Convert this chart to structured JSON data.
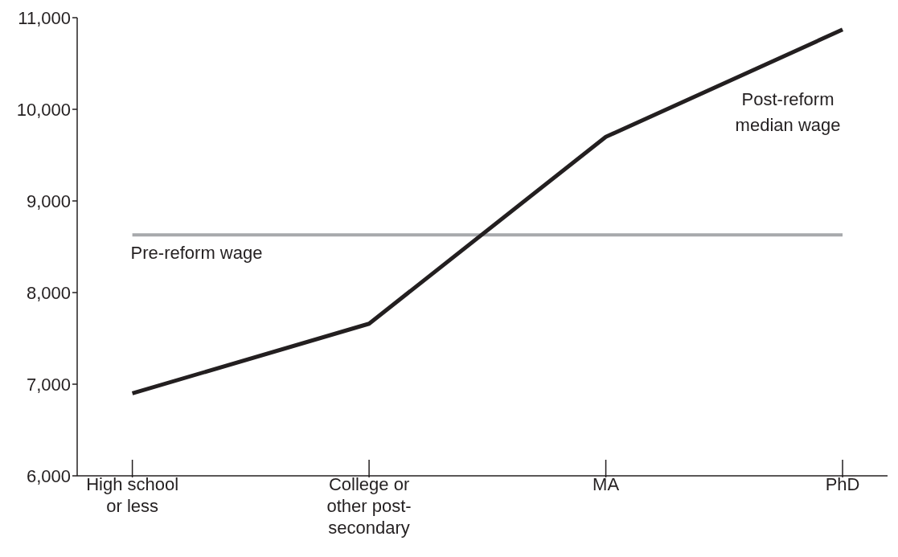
{
  "chart_data": {
    "type": "line",
    "categories": [
      "High school or less",
      "College or other post-secondary",
      "MA",
      "PhD"
    ],
    "series": [
      {
        "name": "Post-reform median wage",
        "color": "#231f20",
        "values": [
          6900,
          7660,
          9700,
          10870
        ]
      }
    ],
    "ylim": [
      6000,
      11000
    ],
    "yticks": [
      {
        "value": 6000,
        "label": "6,000"
      },
      {
        "value": 7000,
        "label": "7,000"
      },
      {
        "value": 8000,
        "label": "8,000"
      },
      {
        "value": 9000,
        "label": "9,000"
      },
      {
        "value": 10000,
        "label": "10,000"
      },
      {
        "value": 11000,
        "label": "11,000"
      }
    ],
    "ref_lines": [
      {
        "axis": "y",
        "value": 8630,
        "label": "Pre-reform wage",
        "color": "#a7a9ac"
      }
    ],
    "grid": false,
    "legend": false,
    "marker": "none",
    "line_style": "solid"
  }
}
